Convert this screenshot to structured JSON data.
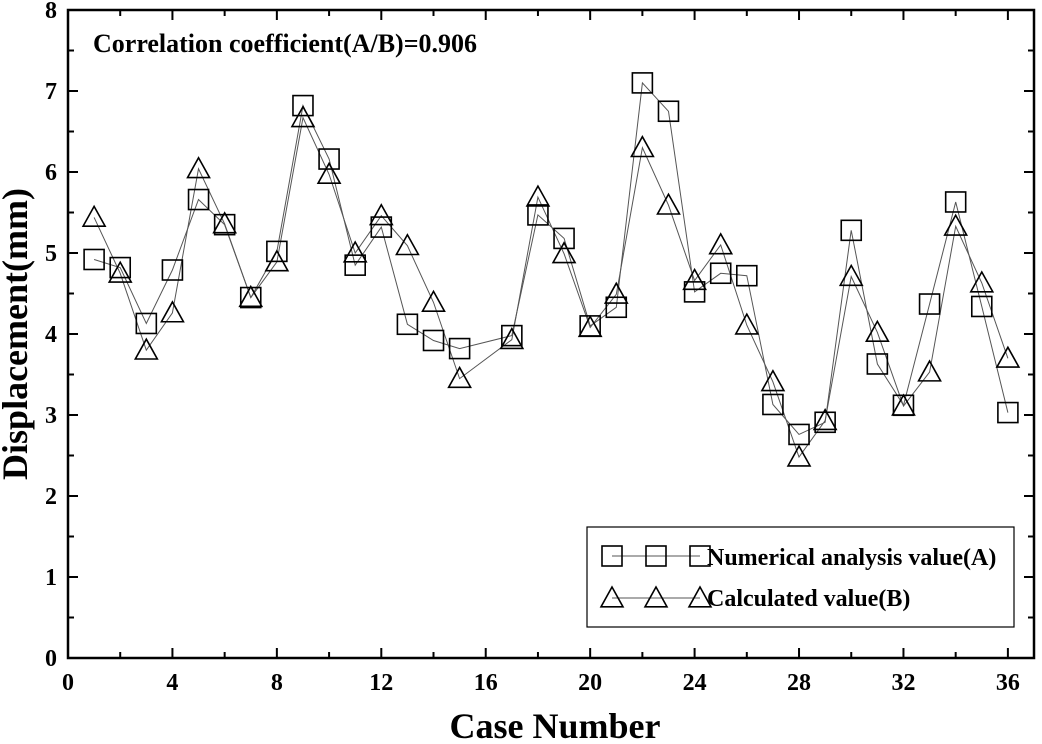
{
  "chart_data": {
    "type": "line",
    "title": "",
    "annotation": "Correlation coefficient(A/B)=0.906",
    "xlabel": "Case Number",
    "ylabel": "Displacement(mm)",
    "xlim": [
      0,
      37
    ],
    "ylim": [
      0,
      8
    ],
    "xticks": [
      0,
      4,
      8,
      12,
      16,
      20,
      24,
      28,
      32,
      36
    ],
    "yticks": [
      0,
      1,
      2,
      3,
      4,
      5,
      6,
      7,
      8
    ],
    "grid": false,
    "legend_position": "bottom-right",
    "series": [
      {
        "name": "Numerical analysis value(A)",
        "marker": "square",
        "color": "#000000",
        "points": [
          [
            1,
            4.92
          ],
          [
            2,
            4.82
          ],
          [
            3,
            4.13
          ],
          [
            4,
            4.79
          ],
          [
            5,
            5.66
          ],
          [
            6,
            5.35
          ],
          [
            7,
            4.45
          ],
          [
            8,
            5.02
          ],
          [
            9,
            6.82
          ],
          [
            10,
            6.16
          ],
          [
            11,
            4.85
          ],
          [
            12,
            5.32
          ],
          [
            13,
            4.12
          ],
          [
            14,
            3.92
          ],
          [
            15,
            3.82
          ],
          [
            17,
            3.98
          ],
          [
            18,
            5.47
          ],
          [
            19,
            5.18
          ],
          [
            20,
            4.1
          ],
          [
            21,
            4.33
          ],
          [
            22,
            7.1
          ],
          [
            23,
            6.75
          ],
          [
            24,
            4.52
          ],
          [
            25,
            4.75
          ],
          [
            26,
            4.72
          ],
          [
            27,
            3.13
          ],
          [
            28,
            2.76
          ],
          [
            29,
            2.91
          ],
          [
            30,
            5.28
          ],
          [
            31,
            3.63
          ],
          [
            32,
            3.12
          ],
          [
            33,
            4.37
          ],
          [
            34,
            5.63
          ],
          [
            35,
            4.34
          ],
          [
            36,
            3.03
          ]
        ]
      },
      {
        "name": "Calculated value(B)",
        "marker": "triangle",
        "color": "#000000",
        "points": [
          [
            1,
            5.44
          ],
          [
            2,
            4.75
          ],
          [
            3,
            3.8
          ],
          [
            4,
            4.26
          ],
          [
            5,
            6.04
          ],
          [
            6,
            5.36
          ],
          [
            7,
            4.45
          ],
          [
            8,
            4.89
          ],
          [
            9,
            6.67
          ],
          [
            10,
            5.97
          ],
          [
            11,
            5.0
          ],
          [
            12,
            5.46
          ],
          [
            13,
            5.09
          ],
          [
            14,
            4.39
          ],
          [
            15,
            3.45
          ],
          [
            17,
            3.93
          ],
          [
            18,
            5.69
          ],
          [
            19,
            4.99
          ],
          [
            20,
            4.08
          ],
          [
            21,
            4.49
          ],
          [
            22,
            6.3
          ],
          [
            23,
            5.59
          ],
          [
            24,
            4.66
          ],
          [
            25,
            5.1
          ],
          [
            26,
            4.11
          ],
          [
            27,
            3.41
          ],
          [
            28,
            2.48
          ],
          [
            29,
            2.93
          ],
          [
            30,
            4.71
          ],
          [
            31,
            4.02
          ],
          [
            32,
            3.11
          ],
          [
            33,
            3.53
          ],
          [
            34,
            5.33
          ],
          [
            35,
            4.63
          ],
          [
            36,
            3.7
          ]
        ]
      }
    ]
  },
  "colors": {
    "axis": "#000000",
    "marker_edge": "#000000",
    "marker_fill": "#ffffff",
    "line": "#555555",
    "background": "#ffffff"
  }
}
